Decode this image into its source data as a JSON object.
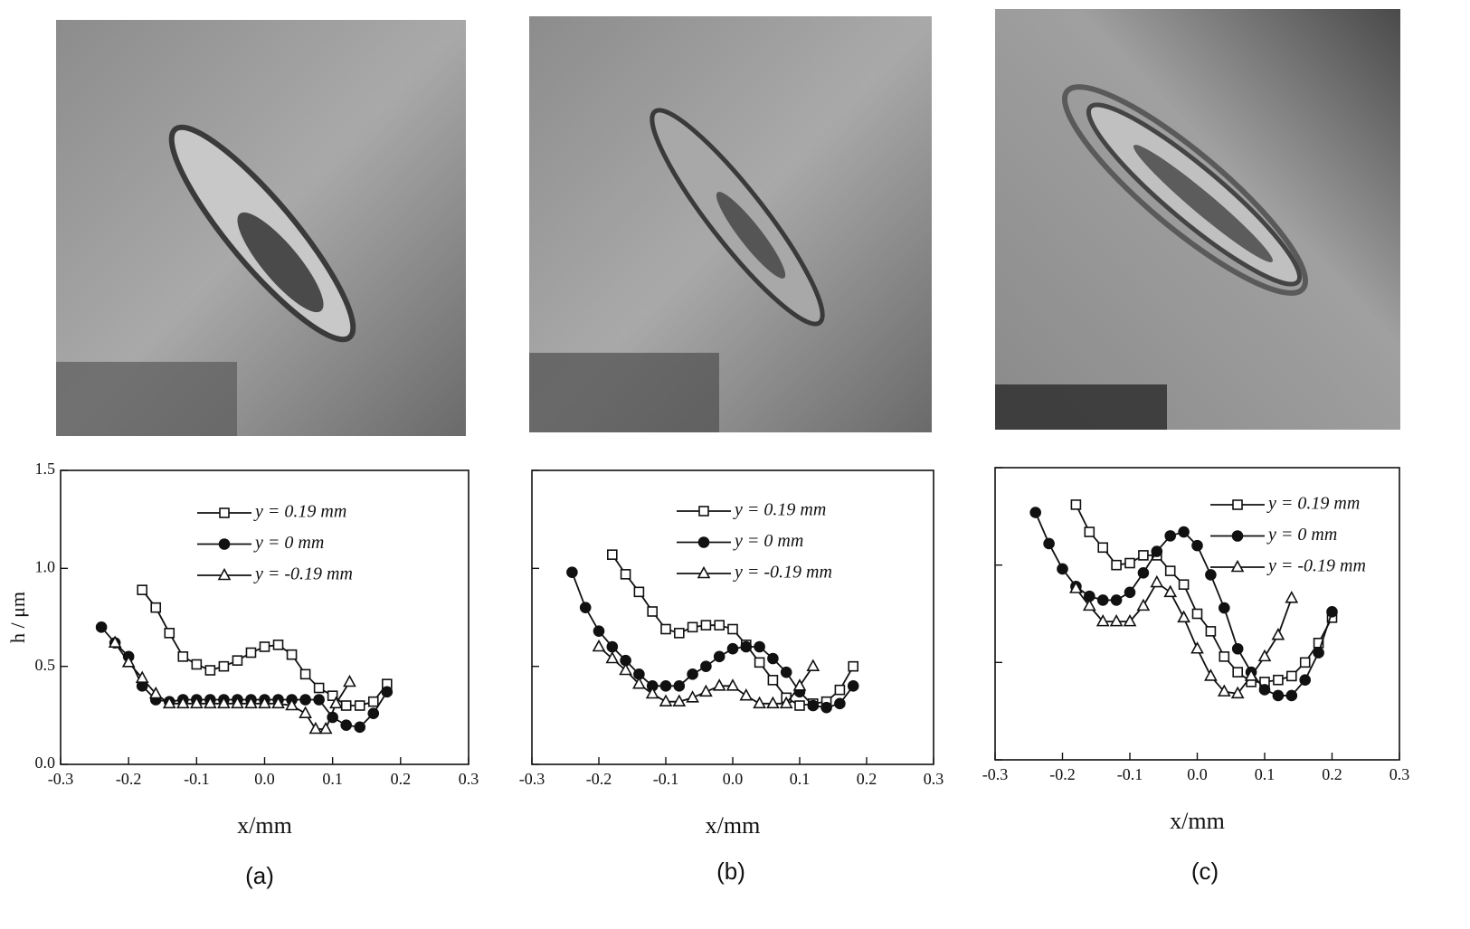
{
  "chart_data": [
    {
      "type": "line",
      "caption": "(a)",
      "xlabel": "x/mm",
      "ylabel": "h / μm",
      "xlim": [
        -0.3,
        0.3
      ],
      "xticks": [
        -0.3,
        -0.2,
        -0.1,
        {
          "value": 0,
          "label": "0.0"
        },
        0.1,
        0.2,
        0.3
      ],
      "ylim": [
        0,
        1.5
      ],
      "yticks": [
        {
          "value": 0,
          "label": "0.0"
        },
        0.5,
        {
          "value": 1,
          "label": "1.0"
        },
        1.5
      ],
      "ytick_labels": true,
      "legend": "upper center",
      "series": [
        {
          "name": "y = 0.19 mm",
          "color": "#111111",
          "marker": "square",
          "filled": false,
          "x": [
            -0.18,
            -0.16,
            -0.14,
            -0.12,
            -0.1,
            -0.08,
            -0.06,
            -0.04,
            -0.02,
            0,
            0.02,
            0.04,
            0.06,
            0.08,
            0.1,
            0.12,
            0.14,
            0.16,
            0.18
          ],
          "values": [
            0.89,
            0.8,
            0.67,
            0.55,
            0.51,
            0.48,
            0.5,
            0.53,
            0.57,
            0.6,
            0.61,
            0.56,
            0.46,
            0.39,
            0.35,
            0.3,
            0.3,
            0.32,
            0.41
          ]
        },
        {
          "name": "y = 0 mm",
          "color": "#111111",
          "marker": "circle",
          "filled": true,
          "x": [
            -0.24,
            -0.22,
            -0.2,
            -0.18,
            -0.16,
            -0.14,
            -0.12,
            -0.1,
            -0.08,
            -0.06,
            -0.04,
            -0.02,
            0,
            0.02,
            0.04,
            0.06,
            0.08,
            0.1,
            0.12,
            0.14,
            0.16,
            0.18
          ],
          "values": [
            0.7,
            0.62,
            0.55,
            0.4,
            0.33,
            0.32,
            0.33,
            0.33,
            0.33,
            0.33,
            0.33,
            0.33,
            0.33,
            0.33,
            0.33,
            0.33,
            0.33,
            0.24,
            0.2,
            0.19,
            0.26,
            0.37
          ]
        },
        {
          "name": "y = -0.19 mm",
          "color": "#111111",
          "marker": "triangle",
          "filled": false,
          "x": [
            -0.22,
            -0.2,
            -0.18,
            -0.16,
            -0.14,
            -0.12,
            -0.1,
            -0.08,
            -0.06,
            -0.04,
            -0.02,
            0,
            0.02,
            0.04,
            0.06,
            0.075,
            0.09,
            0.105,
            0.125
          ],
          "values": [
            0.62,
            0.52,
            0.44,
            0.36,
            0.31,
            0.31,
            0.31,
            0.31,
            0.31,
            0.31,
            0.31,
            0.31,
            0.31,
            0.3,
            0.26,
            0.18,
            0.18,
            0.31,
            0.42
          ]
        }
      ]
    },
    {
      "type": "line",
      "caption": "(b)",
      "xlabel": "x/mm",
      "xlim": [
        -0.3,
        0.3
      ],
      "xticks": [
        -0.3,
        -0.2,
        -0.1,
        {
          "value": 0,
          "label": "0.0"
        },
        0.1,
        0.2,
        0.3
      ],
      "ylim": [
        0,
        1.5
      ],
      "yticks": [
        0,
        0.5,
        1,
        1.5
      ],
      "ytick_labels": false,
      "legend": "upper center",
      "series": [
        {
          "name": "y = 0.19 mm",
          "color": "#111111",
          "marker": "square",
          "filled": false,
          "x": [
            -0.18,
            -0.16,
            -0.14,
            -0.12,
            -0.1,
            -0.08,
            -0.06,
            -0.04,
            -0.02,
            0,
            0.02,
            0.04,
            0.06,
            0.08,
            0.1,
            0.12,
            0.14,
            0.16,
            0.18
          ],
          "values": [
            1.07,
            0.97,
            0.88,
            0.78,
            0.69,
            0.67,
            0.7,
            0.71,
            0.71,
            0.69,
            0.61,
            0.52,
            0.43,
            0.34,
            0.3,
            0.31,
            0.32,
            0.38,
            0.5
          ]
        },
        {
          "name": "y = 0 mm",
          "color": "#111111",
          "marker": "circle",
          "filled": true,
          "x": [
            -0.24,
            -0.22,
            -0.2,
            -0.18,
            -0.16,
            -0.14,
            -0.12,
            -0.1,
            -0.08,
            -0.06,
            -0.04,
            -0.02,
            0,
            0.02,
            0.04,
            0.06,
            0.08,
            0.1,
            0.12,
            0.14,
            0.16,
            0.18
          ],
          "values": [
            0.98,
            0.8,
            0.68,
            0.6,
            0.53,
            0.46,
            0.4,
            0.4,
            0.4,
            0.46,
            0.5,
            0.55,
            0.59,
            0.6,
            0.6,
            0.54,
            0.47,
            0.37,
            0.3,
            0.29,
            0.31,
            0.4
          ]
        },
        {
          "name": "y = -0.19 mm",
          "color": "#111111",
          "marker": "triangle",
          "filled": false,
          "x": [
            -0.2,
            -0.18,
            -0.16,
            -0.14,
            -0.12,
            -0.1,
            -0.08,
            -0.06,
            -0.04,
            -0.02,
            0,
            0.02,
            0.04,
            0.06,
            0.08,
            0.1,
            0.12
          ],
          "values": [
            0.6,
            0.54,
            0.48,
            0.41,
            0.36,
            0.32,
            0.32,
            0.34,
            0.37,
            0.4,
            0.4,
            0.35,
            0.31,
            0.31,
            0.31,
            0.4,
            0.5
          ]
        }
      ]
    },
    {
      "type": "line",
      "caption": "(c)",
      "xlabel": "x/mm",
      "xlim": [
        -0.3,
        0.3
      ],
      "xticks": [
        -0.3,
        -0.2,
        -0.1,
        {
          "value": 0,
          "label": "0.0"
        },
        0.1,
        0.2,
        0.3
      ],
      "ylim": [
        0,
        1.5
      ],
      "yticks": [
        0,
        0.5,
        1,
        1.5
      ],
      "ytick_labels": false,
      "legend": "upper right",
      "series": [
        {
          "name": "y = 0.19 mm",
          "color": "#111111",
          "marker": "square",
          "filled": false,
          "x": [
            -0.18,
            -0.16,
            -0.14,
            -0.12,
            -0.1,
            -0.08,
            -0.06,
            -0.04,
            -0.02,
            0,
            0.02,
            0.04,
            0.06,
            0.08,
            0.1,
            0.12,
            0.14,
            0.16,
            0.18,
            0.2
          ],
          "values": [
            1.31,
            1.17,
            1.09,
            1.0,
            1.01,
            1.05,
            1.05,
            0.97,
            0.9,
            0.75,
            0.66,
            0.53,
            0.45,
            0.4,
            0.4,
            0.41,
            0.43,
            0.5,
            0.6,
            0.73
          ]
        },
        {
          "name": "y = 0 mm",
          "color": "#111111",
          "marker": "circle",
          "filled": true,
          "x": [
            -0.24,
            -0.22,
            -0.2,
            -0.18,
            -0.16,
            -0.14,
            -0.12,
            -0.1,
            -0.08,
            -0.06,
            -0.04,
            -0.02,
            0,
            0.02,
            0.04,
            0.06,
            0.08,
            0.1,
            0.12,
            0.14,
            0.16,
            0.18,
            0.2
          ],
          "values": [
            1.27,
            1.11,
            0.98,
            0.89,
            0.84,
            0.82,
            0.82,
            0.86,
            0.96,
            1.07,
            1.15,
            1.17,
            1.1,
            0.95,
            0.78,
            0.57,
            0.45,
            0.36,
            0.33,
            0.33,
            0.41,
            0.55,
            0.76
          ]
        },
        {
          "name": "y = -0.19 mm",
          "color": "#111111",
          "marker": "triangle",
          "filled": false,
          "x": [
            -0.18,
            -0.16,
            -0.14,
            -0.12,
            -0.1,
            -0.08,
            -0.06,
            -0.04,
            -0.02,
            0,
            0.02,
            0.04,
            0.06,
            0.08,
            0.1,
            0.12,
            0.14
          ],
          "values": [
            0.88,
            0.79,
            0.71,
            0.71,
            0.71,
            0.79,
            0.91,
            0.86,
            0.73,
            0.57,
            0.43,
            0.35,
            0.34,
            0.43,
            0.53,
            0.64,
            0.83
          ]
        }
      ]
    }
  ]
}
